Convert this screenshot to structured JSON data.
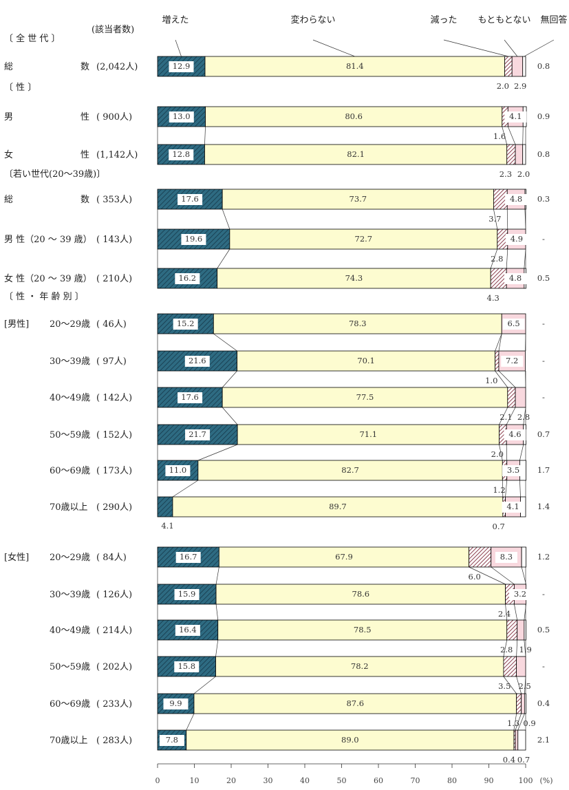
{
  "chart_data": {
    "type": "bar",
    "subtype": "stacked-horizontal-100",
    "xlim": [
      0,
      100
    ],
    "x_ticks": [
      "0",
      "10",
      "20",
      "30",
      "40",
      "50",
      "60",
      "70",
      "80",
      "90",
      "100"
    ],
    "x_unit": "(%)",
    "count_header": "(該当者数)",
    "legend": [
      "増えた",
      "変わらない",
      "減った",
      "もともとない",
      "無回答"
    ],
    "colors": {
      "increased": "#2e6b82",
      "unchanged": "#fdfcd0",
      "decreased": "#8c3f4e",
      "none": "#f8d8de",
      "no_answer": "#ffffff"
    },
    "sections": [
      {
        "label": "〔 全 世 代 〕"
      },
      {
        "label": "〔 性 〕"
      },
      {
        "label": "〔若い世代(20～39歳)〕"
      },
      {
        "label": "〔 性 ・ 年 齢 別 〕"
      }
    ],
    "rows": [
      {
        "group": "",
        "name_l": "総",
        "name_r": "数",
        "count": "(2,042人)",
        "values": [
          12.9,
          81.4,
          2.0,
          2.9,
          0.8
        ],
        "labels": [
          "12.9",
          "81.4",
          "2.0",
          "2.9",
          "0.8"
        ]
      },
      {
        "group": "",
        "name_l": "男",
        "name_r": "性",
        "count": "( 900人)",
        "values": [
          13.0,
          80.6,
          1.6,
          4.1,
          0.9
        ],
        "labels": [
          "13.0",
          "80.6",
          "1.6",
          "4.1",
          "0.9"
        ]
      },
      {
        "group": "",
        "name_l": "女",
        "name_r": "性",
        "count": "(1,142人)",
        "values": [
          12.8,
          82.1,
          2.3,
          2.0,
          0.8
        ],
        "labels": [
          "12.8",
          "82.1",
          "2.3",
          "2.0",
          "0.8"
        ]
      },
      {
        "group": "",
        "name_l": "総",
        "name_r": "数",
        "count": "( 353人)",
        "values": [
          17.6,
          73.7,
          3.7,
          4.8,
          0.3
        ],
        "labels": [
          "17.6",
          "73.7",
          "3.7",
          "4.8",
          "0.3"
        ]
      },
      {
        "group": "",
        "name_l": "男 性（20 ～ 39 歳）",
        "name_r": "",
        "count": "( 143人)",
        "values": [
          19.6,
          72.7,
          2.8,
          4.9,
          0
        ],
        "labels": [
          "19.6",
          "72.7",
          "2.8",
          "4.9",
          "-"
        ]
      },
      {
        "group": "",
        "name_l": "女 性（20 ～ 39 歳）",
        "name_r": "",
        "count": "( 210人)",
        "values": [
          16.2,
          74.3,
          4.3,
          4.8,
          0.5
        ],
        "labels": [
          "16.2",
          "74.3",
          "4.3",
          "4.8",
          "0.5"
        ]
      },
      {
        "group": "[男性]",
        "name_l": "20～29歳",
        "name_r": "",
        "count": "(  46人)",
        "values": [
          15.2,
          78.3,
          0,
          6.5,
          0
        ],
        "labels": [
          "15.2",
          "78.3",
          "-",
          "6.5",
          "-"
        ]
      },
      {
        "group": "",
        "name_l": "30～39歳",
        "name_r": "",
        "count": "(  97人)",
        "values": [
          21.6,
          70.1,
          1.0,
          7.2,
          0
        ],
        "labels": [
          "21.6",
          "70.1",
          "1.0",
          "7.2",
          "-"
        ]
      },
      {
        "group": "",
        "name_l": "40～49歳",
        "name_r": "",
        "count": "( 142人)",
        "values": [
          17.6,
          77.5,
          2.1,
          2.8,
          0
        ],
        "labels": [
          "17.6",
          "77.5",
          "2.1",
          "2.8",
          "-"
        ]
      },
      {
        "group": "",
        "name_l": "50～59歳",
        "name_r": "",
        "count": "( 152人)",
        "values": [
          21.7,
          71.1,
          2.0,
          4.6,
          0.7
        ],
        "labels": [
          "21.7",
          "71.1",
          "2.0",
          "4.6",
          "0.7"
        ]
      },
      {
        "group": "",
        "name_l": "60～69歳",
        "name_r": "",
        "count": "( 173人)",
        "values": [
          11.0,
          82.7,
          1.2,
          3.5,
          1.7
        ],
        "labels": [
          "11.0",
          "82.7",
          "1.2",
          "3.5",
          "1.7"
        ]
      },
      {
        "group": "",
        "name_l": "70歳以上",
        "name_r": "",
        "count": "( 290人)",
        "values": [
          4.1,
          89.7,
          0.7,
          4.1,
          1.4
        ],
        "labels": [
          "4.1",
          "89.7",
          "0.7",
          "4.1",
          "1.4"
        ]
      },
      {
        "group": "[女性]",
        "name_l": "20～29歳",
        "name_r": "",
        "count": "(  84人)",
        "values": [
          16.7,
          67.9,
          6.0,
          8.3,
          1.2
        ],
        "labels": [
          "16.7",
          "67.9",
          "6.0",
          "8.3",
          "1.2"
        ]
      },
      {
        "group": "",
        "name_l": "30～39歳",
        "name_r": "",
        "count": "( 126人)",
        "values": [
          15.9,
          78.6,
          2.4,
          3.2,
          0
        ],
        "labels": [
          "15.9",
          "78.6",
          "2.4",
          "3.2",
          "-"
        ]
      },
      {
        "group": "",
        "name_l": "40～49歳",
        "name_r": "",
        "count": "( 214人)",
        "values": [
          16.4,
          78.5,
          2.8,
          1.9,
          0.5
        ],
        "labels": [
          "16.4",
          "78.5",
          "2.8",
          "1.9",
          "0.5"
        ]
      },
      {
        "group": "",
        "name_l": "50～59歳",
        "name_r": "",
        "count": "( 202人)",
        "values": [
          15.8,
          78.2,
          3.5,
          2.5,
          0
        ],
        "labels": [
          "15.8",
          "78.2",
          "3.5",
          "2.5",
          "-"
        ]
      },
      {
        "group": "",
        "name_l": "60～69歳",
        "name_r": "",
        "count": "( 233人)",
        "values": [
          9.9,
          87.6,
          1.3,
          0.9,
          0.4
        ],
        "labels": [
          "9.9",
          "87.6",
          "1.3",
          "0.9",
          "0.4"
        ]
      },
      {
        "group": "",
        "name_l": "70歳以上",
        "name_r": "",
        "count": "( 283人)",
        "values": [
          7.8,
          89.0,
          0.4,
          0.7,
          2.1
        ],
        "labels": [
          "7.8",
          "89.0",
          "0.4",
          "0.7",
          "2.1"
        ]
      }
    ]
  }
}
